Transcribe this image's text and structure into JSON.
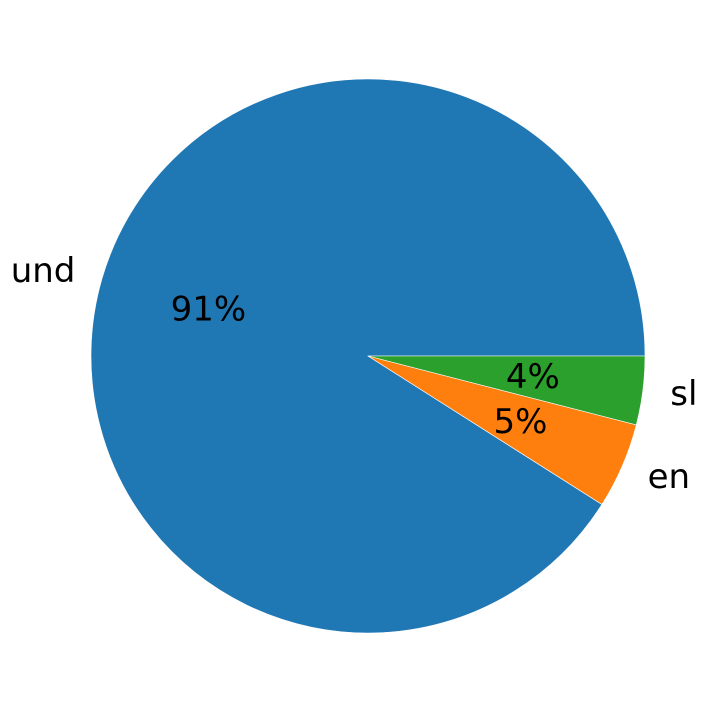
{
  "chart_data": {
    "type": "pie",
    "title": "",
    "categories": [
      "und",
      "en",
      "sl"
    ],
    "values": [
      91,
      5,
      4
    ],
    "value_labels": [
      "91%",
      "5%",
      "4%"
    ],
    "colors": [
      "#1f77b4",
      "#ff7f0e",
      "#2ca02c"
    ],
    "start_angle_deg": 0,
    "direction": "counterclockwise",
    "legend": "none"
  }
}
